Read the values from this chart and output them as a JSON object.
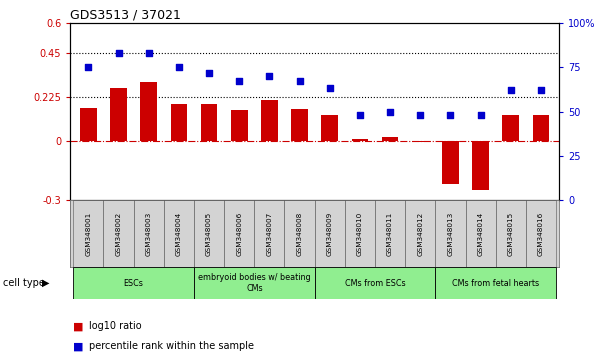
{
  "title": "GDS3513 / 37021",
  "samples": [
    "GSM348001",
    "GSM348002",
    "GSM348003",
    "GSM348004",
    "GSM348005",
    "GSM348006",
    "GSM348007",
    "GSM348008",
    "GSM348009",
    "GSM348010",
    "GSM348011",
    "GSM348012",
    "GSM348013",
    "GSM348014",
    "GSM348015",
    "GSM348016"
  ],
  "log10_ratio": [
    0.17,
    0.27,
    0.3,
    0.19,
    0.19,
    0.16,
    0.21,
    0.165,
    0.13,
    0.01,
    0.02,
    -0.005,
    -0.22,
    -0.25,
    0.13,
    0.13
  ],
  "percentile_rank_pct": [
    75,
    83,
    83,
    75,
    72,
    67,
    70,
    67,
    63,
    48,
    50,
    48,
    48,
    48,
    62,
    62
  ],
  "bar_color": "#cc0000",
  "dot_color": "#0000cc",
  "left_ylim": [
    -0.3,
    0.6
  ],
  "right_ylim": [
    0,
    100
  ],
  "left_yticks": [
    -0.3,
    0,
    0.225,
    0.45,
    0.6
  ],
  "left_yticklabels": [
    "-0.3",
    "0",
    "0.225",
    "0.45",
    "0.6"
  ],
  "right_yticks": [
    0,
    25,
    50,
    75,
    100
  ],
  "right_yticklabels": [
    "0",
    "25",
    "50",
    "75",
    "100%"
  ],
  "hline_y_left": [
    0.225,
    0.45
  ],
  "cell_ranges": [
    {
      "label": "ESCs",
      "start": 0,
      "end": 3
    },
    {
      "label": "embryoid bodies w/ beating\nCMs",
      "start": 4,
      "end": 7
    },
    {
      "label": "CMs from ESCs",
      "start": 8,
      "end": 11
    },
    {
      "label": "CMs from fetal hearts",
      "start": 12,
      "end": 15
    }
  ],
  "legend_red_label": "log10 ratio",
  "legend_blue_label": "percentile rank within the sample",
  "cell_type_label": "cell type",
  "background_cell": "#d3d3d3",
  "green_color": "#90ee90"
}
